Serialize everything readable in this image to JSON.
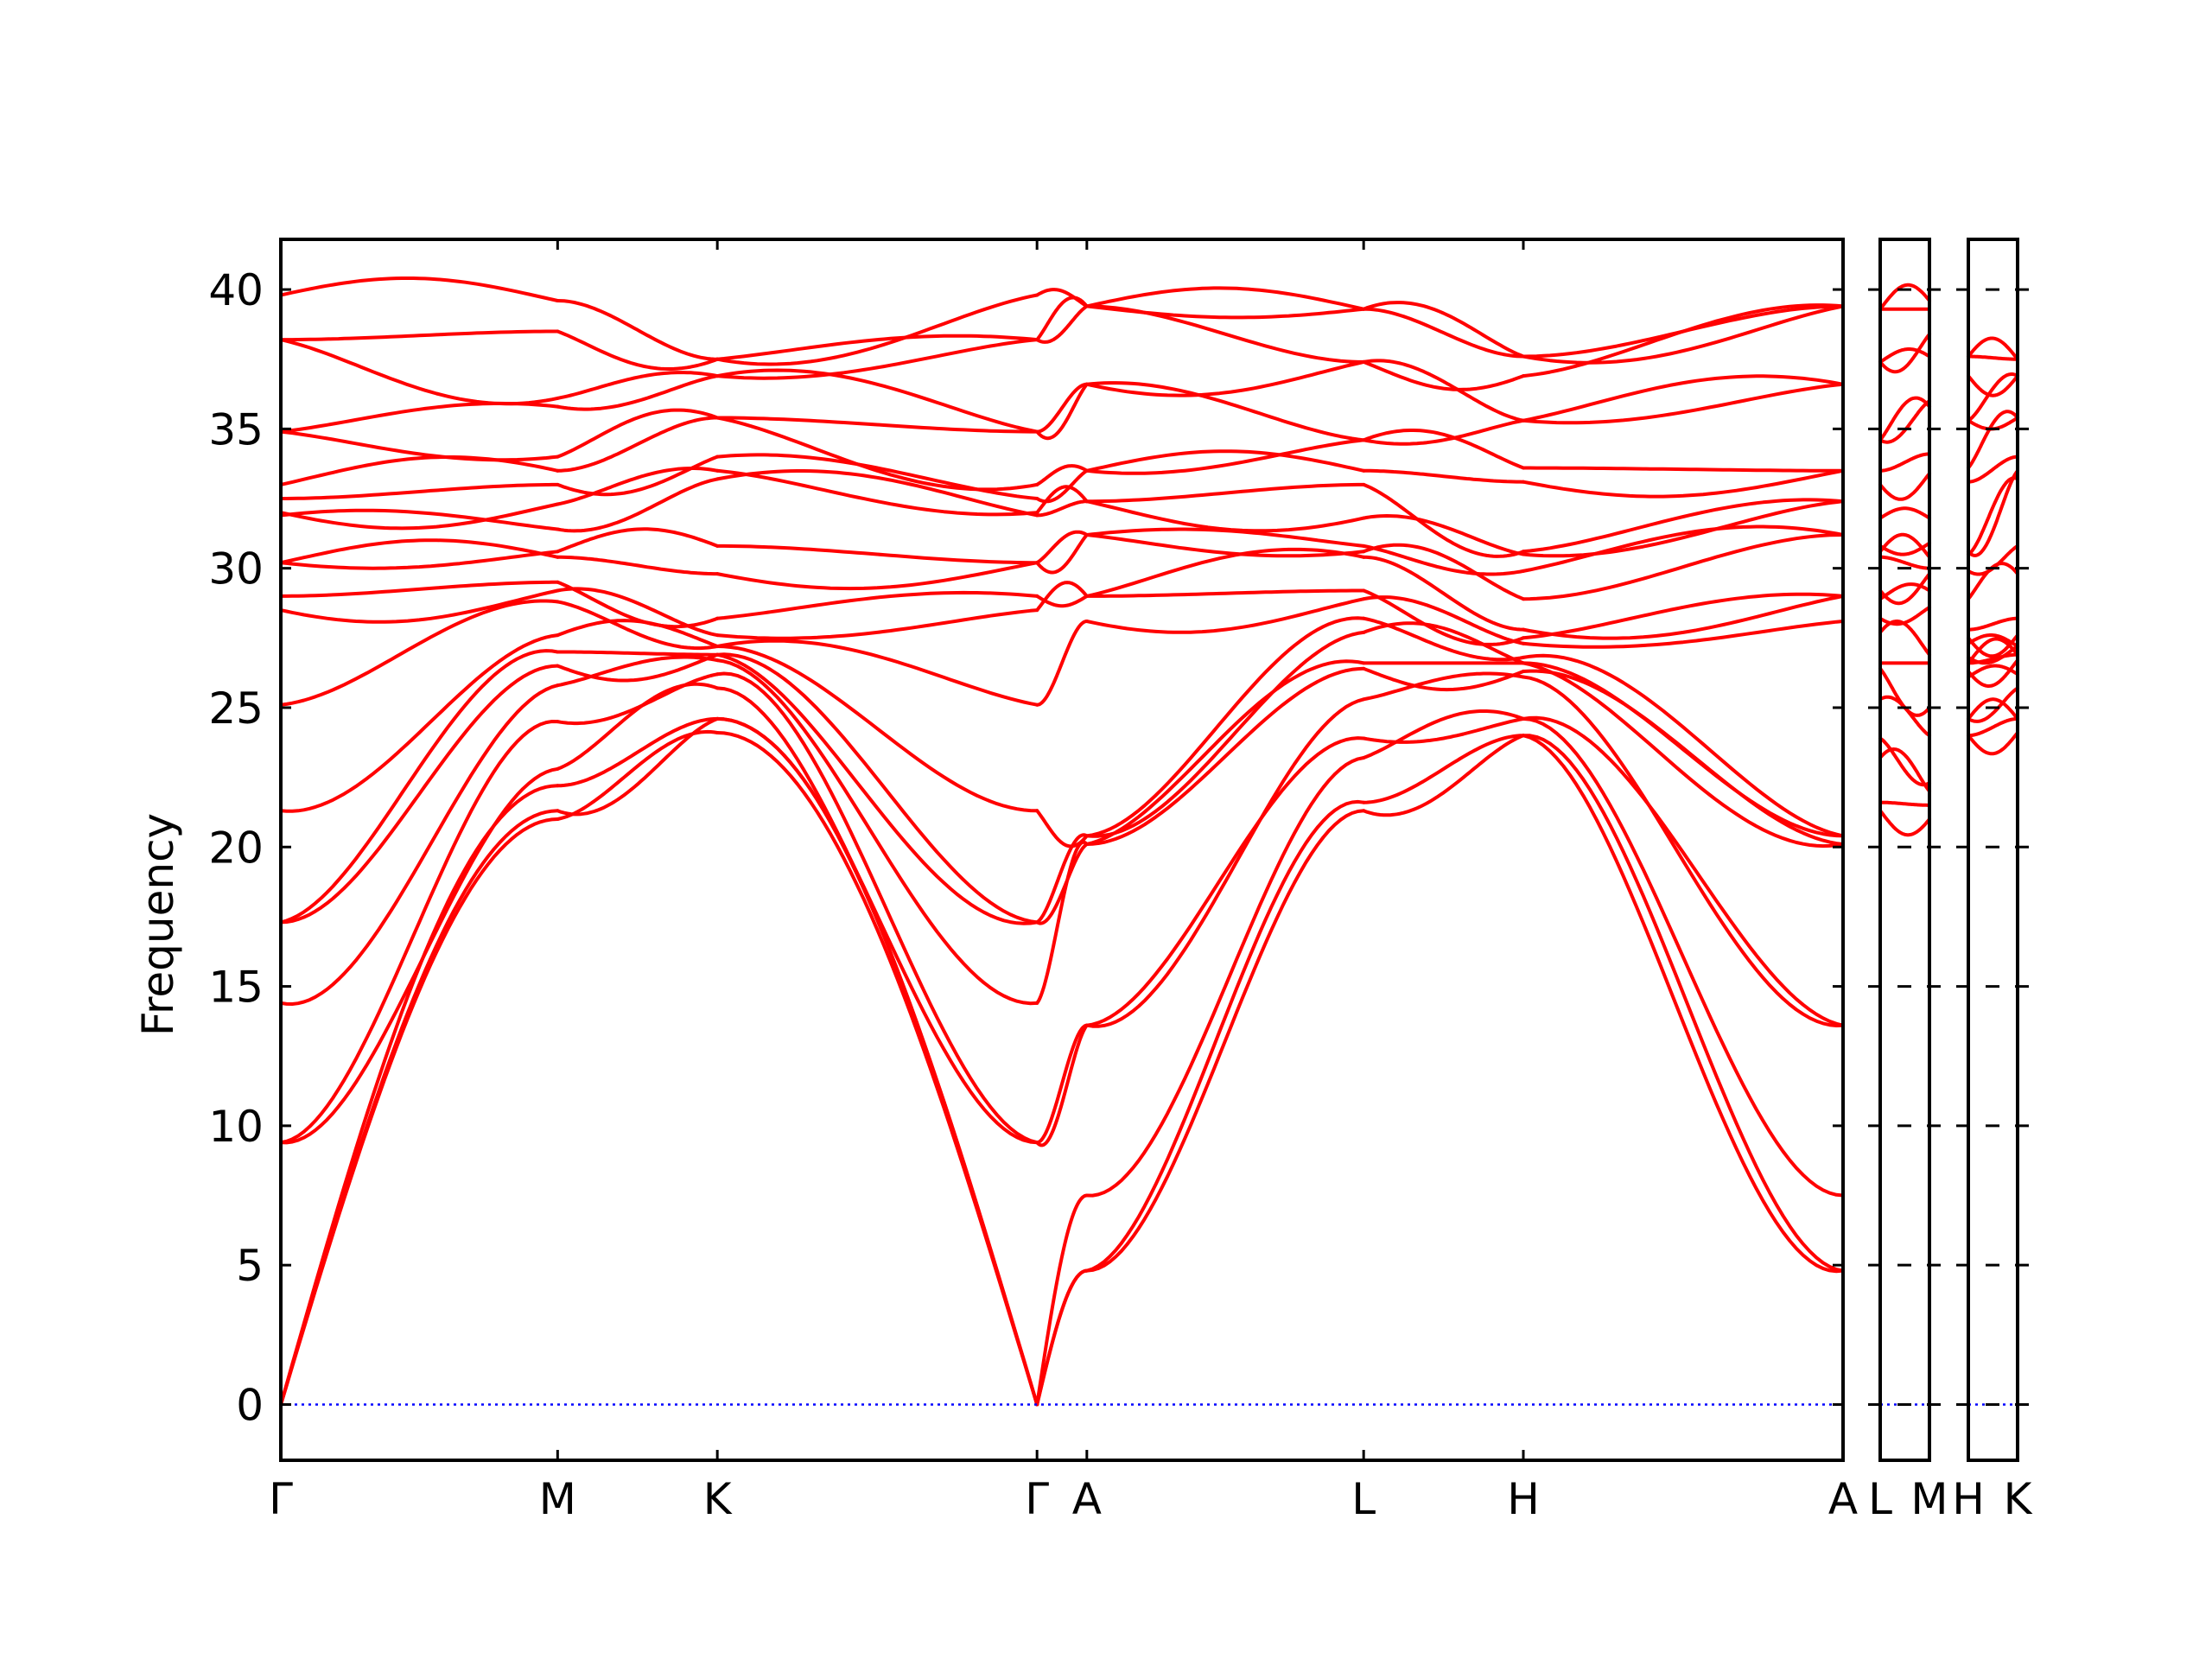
{
  "chart_data": {
    "type": "line",
    "title": "",
    "xlabel": "",
    "ylabel": "Frequency",
    "ylim": [
      -2,
      41.8
    ],
    "yticks": [
      0,
      5,
      10,
      15,
      20,
      25,
      30,
      35,
      40
    ],
    "grid": false,
    "legend": "none",
    "colors": {
      "bands": "#ff0000",
      "zero_line": "#0000ff",
      "frame": "#000000"
    },
    "panels": [
      {
        "labels": [
          "Γ",
          "M",
          "K",
          "Γ",
          "A",
          "L",
          "H",
          "A"
        ],
        "segment_lengths": [
          1.0,
          0.577,
          1.155,
          0.18,
          1.0,
          0.577,
          1.155
        ]
      },
      {
        "labels": [
          "L",
          "M"
        ],
        "segment_lengths": [
          0.18
        ]
      },
      {
        "labels": [
          "H",
          "K"
        ],
        "segment_lengths": [
          0.18
        ]
      }
    ],
    "special_points": {
      "Gamma": [
        0,
        0,
        0,
        9.4,
        9.4,
        14.4,
        17.3,
        17.3,
        21.3,
        25.1,
        28.5,
        29.0,
        30.2,
        30.2,
        31.9,
        32.0,
        32.5,
        33.0,
        34.9,
        34.9,
        38.2,
        38.2,
        39.8
      ],
      "M": [
        21.0,
        21.3,
        22.2,
        22.8,
        24.5,
        25.8,
        26.5,
        27.0,
        27.6,
        28.8,
        29.2,
        29.5,
        30.4,
        30.6,
        31.4,
        32.3,
        33.0,
        33.5,
        34.0,
        35.8,
        36.1,
        38.5,
        39.6
      ],
      "K": [
        24.1,
        24.6,
        24.6,
        25.7,
        26.2,
        26.7,
        26.9,
        26.9,
        27.2,
        27.2,
        27.6,
        28.2,
        29.8,
        30.8,
        33.2,
        33.5,
        34.0,
        35.4,
        35.4,
        36.9,
        36.9,
        37.5,
        37.5
      ],
      "A": [
        4.8,
        4.8,
        7.5,
        13.6,
        13.6,
        20.1,
        20.1,
        20.4,
        20.4,
        28.1,
        29.0,
        29.0,
        31.2,
        31.2,
        32.4,
        32.4,
        33.5,
        33.5,
        36.6,
        36.6,
        39.4,
        39.4,
        39.4
      ],
      "L": [
        21.3,
        21.6,
        23.2,
        23.9,
        25.3,
        26.4,
        26.6,
        27.7,
        28.2,
        28.9,
        29.2,
        30.4,
        30.6,
        30.8,
        31.8,
        33.0,
        33.5,
        34.6,
        34.6,
        37.4,
        37.4,
        39.3,
        39.3
      ],
      "H": [
        24.0,
        24.0,
        24.6,
        24.6,
        26.1,
        26.3,
        26.6,
        26.6,
        26.8,
        27.3,
        27.5,
        27.8,
        28.9,
        29.9,
        30.5,
        30.6,
        33.1,
        33.6,
        35.3,
        35.3,
        36.9,
        37.6,
        37.6
      ],
      "M_split": [
        21.0,
        21.5,
        22.0,
        22.3,
        24.0,
        25.0,
        26.6,
        26.9,
        28.6,
        29.2,
        29.8,
        30.0,
        30.4,
        30.9,
        31.8,
        33.4,
        34.1,
        35.8,
        36.0,
        37.6,
        38.4,
        39.3,
        39.6
      ]
    }
  }
}
